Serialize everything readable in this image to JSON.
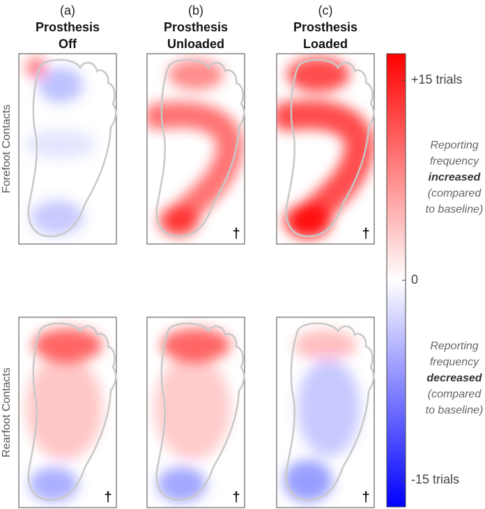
{
  "columns": [
    {
      "letter": "(a)",
      "title": [
        "Prosthesis",
        "Off"
      ]
    },
    {
      "letter": "(b)",
      "title": [
        "Prosthesis",
        "Unloaded"
      ]
    },
    {
      "letter": "(c)",
      "title": [
        "Prosthesis",
        "Loaded"
      ]
    }
  ],
  "rows": [
    {
      "label": "Forefoot Contacts",
      "marks": [
        null,
        "†",
        "†"
      ]
    },
    {
      "label": "Rearfoot Contacts",
      "marks": [
        "†",
        "†",
        "†"
      ]
    }
  ],
  "colorbar": {
    "lim": [
      -17,
      17
    ],
    "colors": [
      "#0000ff",
      "#ffffff",
      "#ff0000"
    ],
    "ticks": [
      {
        "value": 15,
        "label": "+15 trials"
      },
      0,
      {
        "value": -15,
        "label": "-15 trials"
      }
    ]
  },
  "notes": [
    [
      "Reporting",
      "frequency",
      "increased",
      "(compared",
      "to baseline)"
    ],
    [
      "Reporting",
      "frequency",
      "decreased",
      "(compared",
      "to baseline)"
    ]
  ]
}
